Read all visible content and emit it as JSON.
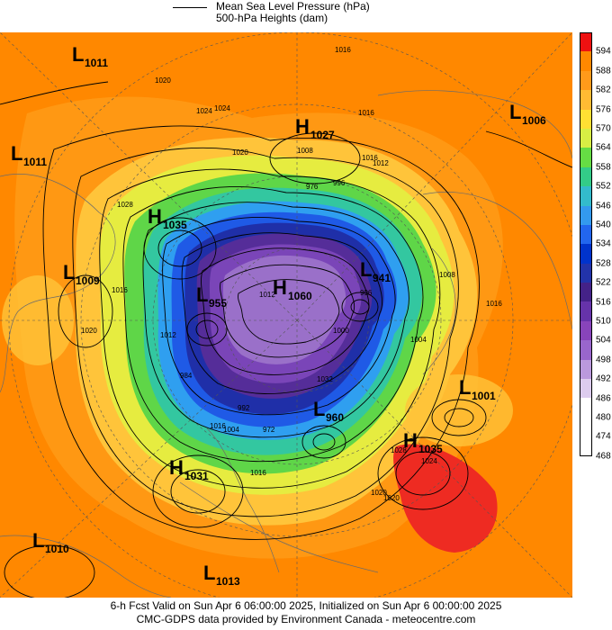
{
  "legend": {
    "line_label_1": "Mean Sea Level Pressure (hPa)",
    "line_label_2": "500-hPa Heights (dam)"
  },
  "colorbar": {
    "labels": [
      "594",
      "588",
      "582",
      "576",
      "570",
      "564",
      "558",
      "552",
      "546",
      "540",
      "534",
      "528",
      "522",
      "516",
      "510",
      "504",
      "498",
      "492",
      "486",
      "480",
      "474",
      "468"
    ],
    "colors": [
      "#ee1111",
      "#ff8800",
      "#ff9a1a",
      "#ffbb33",
      "#ffe033",
      "#d8ee44",
      "#66dd44",
      "#33cc88",
      "#33bbcc",
      "#3399ee",
      "#2266ee",
      "#0033cc",
      "#2233aa",
      "#442288",
      "#6633aa",
      "#8844bb",
      "#9966cc",
      "#bb99dd",
      "#ddccee",
      "#ffffff",
      "#ffffff",
      "#ffffff"
    ]
  },
  "systems": [
    {
      "type": "L",
      "value": "1011"
    },
    {
      "type": "L",
      "value": "1011"
    },
    {
      "type": "H",
      "value": "1027"
    },
    {
      "type": "L",
      "value": "1006"
    },
    {
      "type": "H",
      "value": "1035"
    },
    {
      "type": "L",
      "value": "1009"
    },
    {
      "type": "L",
      "value": "955"
    },
    {
      "type": "H",
      "value": "1060"
    },
    {
      "type": "L",
      "value": "941"
    },
    {
      "type": "L",
      "value": "1001"
    },
    {
      "type": "L",
      "value": "960"
    },
    {
      "type": "H",
      "value": "1035"
    },
    {
      "type": "H",
      "value": "1031"
    },
    {
      "type": "L",
      "value": "1010"
    },
    {
      "type": "L",
      "value": "1013"
    }
  ],
  "isobar_labels": [
    "1016",
    "1020",
    "1024",
    "1028",
    "1024",
    "1016",
    "1020",
    "996",
    "1012",
    "1016",
    "1004",
    "1016",
    "1020",
    "1012",
    "1008",
    "1016",
    "1004",
    "1016",
    "1028",
    "1024",
    "1020",
    "1020",
    "1008",
    "976",
    "996",
    "1016",
    "1012",
    "1000",
    "1032",
    "992",
    "984",
    "972"
  ],
  "footer": {
    "line1": "6-h Fcst Valid on Sun Apr  6 06:00:00 2025, Initialized on Sun Apr  6 00:00:00 2025",
    "line2": "CMC-GDPS data provided by Environment Canada - meteocentre.com"
  }
}
